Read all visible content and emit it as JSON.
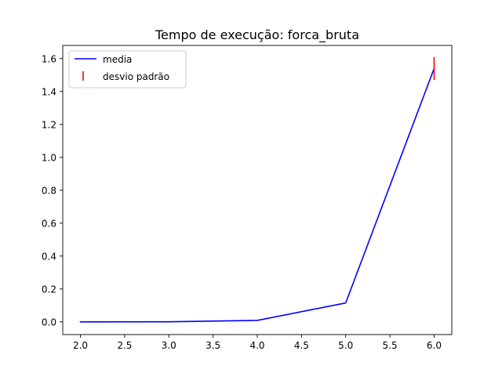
{
  "chart_data": {
    "type": "line",
    "title": "Tempo de execução: forca_bruta",
    "xlabel": "",
    "ylabel": "",
    "xlim": [
      1.8,
      6.2
    ],
    "ylim": [
      -0.077,
      1.68
    ],
    "x_ticks": [
      2.0,
      2.5,
      3.0,
      3.5,
      4.0,
      4.5,
      5.0,
      5.5,
      6.0
    ],
    "x_tick_labels": [
      "2.0",
      "2.5",
      "3.0",
      "3.5",
      "4.0",
      "4.5",
      "5.0",
      "5.5",
      "6.0"
    ],
    "y_ticks": [
      0.0,
      0.2,
      0.4,
      0.6,
      0.8,
      1.0,
      1.2,
      1.4,
      1.6
    ],
    "y_tick_labels": [
      "0.0",
      "0.2",
      "0.4",
      "0.6",
      "0.8",
      "1.0",
      "1.2",
      "1.4",
      "1.6"
    ],
    "grid": false,
    "legend_position": "top-left",
    "series": [
      {
        "name": "media",
        "kind": "line",
        "color": "#0000ff",
        "x": [
          2,
          3,
          4,
          5,
          6
        ],
        "y": [
          0.0,
          0.0005,
          0.009,
          0.115,
          1.54
        ]
      }
    ],
    "error_bars": {
      "name": "desvio padrão",
      "color": "#ff0000",
      "x": [
        2,
        3,
        4,
        5,
        6
      ],
      "y": [
        0.0,
        0.0005,
        0.009,
        0.115,
        1.54
      ],
      "err": [
        0.0,
        0.0,
        0.0005,
        0.002,
        0.07
      ]
    }
  }
}
